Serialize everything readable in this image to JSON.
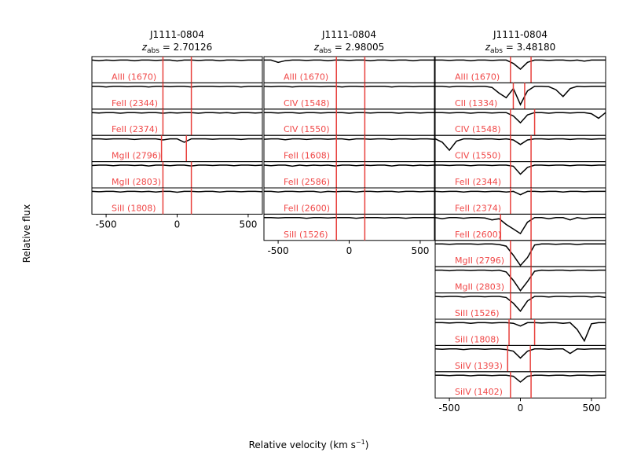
{
  "ylabel": "Relative flux",
  "xlabel_parts": [
    "Relative velocity (km s",
    "−1",
    ")"
  ],
  "chart_data": [
    {
      "type": "line",
      "title": "J1111-0804",
      "subtitle_parts": [
        "z",
        "abs",
        " = 2.70126"
      ],
      "x": [
        -600,
        -550,
        -500,
        -450,
        -400,
        -350,
        -300,
        -250,
        -200,
        -150,
        -100,
        -50,
        0,
        50,
        100,
        150,
        200,
        250,
        300,
        350,
        400,
        450,
        500,
        550,
        600
      ],
      "xlim": [
        -600,
        600
      ],
      "xticks": [
        -500,
        0,
        500
      ],
      "ylim": [
        0,
        1.15
      ],
      "label_color": "#f04848",
      "vline_color": "#e8403c",
      "series": [
        {
          "name": "AlII (1670)",
          "color": "#000000",
          "vlines": [
            -100,
            100
          ],
          "values": [
            1,
            0.97,
            1,
            0.98,
            1,
            1,
            0.97,
            1,
            1,
            0.98,
            1,
            1,
            0.96,
            1,
            1,
            0.98,
            1,
            1,
            0.97,
            1,
            1,
            0.98,
            1,
            1,
            1
          ]
        },
        {
          "name": "FeII (2344)",
          "color": "#000000",
          "vlines": [
            -100,
            100
          ],
          "values": [
            1,
            1,
            0.97,
            1,
            1,
            0.98,
            1,
            1,
            0.97,
            1,
            1,
            0.98,
            1,
            1,
            0.97,
            1,
            1,
            1,
            0.98,
            1,
            1,
            0.97,
            1,
            1,
            1
          ]
        },
        {
          "name": "FeII (2374)",
          "color": "#000000",
          "vlines": [
            -100,
            100
          ],
          "values": [
            1,
            0.98,
            1,
            1,
            0.97,
            1,
            1,
            0.98,
            1,
            1,
            0.97,
            1,
            0.98,
            1,
            1,
            0.97,
            1,
            1,
            0.98,
            1,
            0.97,
            1,
            1,
            0.98,
            1
          ]
        },
        {
          "name": "MgII (2796)",
          "color": "#000000",
          "vlines": [
            -110,
            65
          ],
          "values": [
            1,
            1,
            0.98,
            1,
            1,
            1,
            0.97,
            1,
            1,
            1,
            0.95,
            1,
            1,
            0.85,
            1,
            1,
            1,
            0.98,
            1,
            1,
            1,
            0.97,
            1,
            1,
            1
          ]
        },
        {
          "name": "MgII (2803)",
          "color": "#000000",
          "vlines": [
            -100,
            100
          ],
          "values": [
            0.98,
            1,
            1,
            0.97,
            1,
            1,
            0.98,
            1,
            0.96,
            1,
            1,
            0.97,
            1,
            1,
            0.96,
            1,
            1,
            0.98,
            1,
            1,
            0.97,
            1,
            1,
            0.98,
            1
          ]
        },
        {
          "name": "SiII (1808)",
          "color": "#000000",
          "vlines": [
            -100,
            100
          ],
          "values": [
            1,
            0.98,
            1,
            1,
            0.97,
            1,
            1,
            0.98,
            1,
            0.97,
            1,
            1,
            0.96,
            1,
            1,
            0.98,
            1,
            1,
            0.97,
            1,
            1,
            0.98,
            1,
            1,
            0.98
          ]
        }
      ]
    },
    {
      "type": "line",
      "title": "J1111-0804",
      "subtitle_parts": [
        "z",
        "abs",
        " = 2.98005"
      ],
      "x": [
        -600,
        -550,
        -500,
        -450,
        -400,
        -350,
        -300,
        -250,
        -200,
        -150,
        -100,
        -50,
        0,
        50,
        100,
        150,
        200,
        250,
        300,
        350,
        400,
        450,
        500,
        550,
        600
      ],
      "xlim": [
        -600,
        600
      ],
      "xticks": [
        -500,
        0,
        500
      ],
      "ylim": [
        0,
        1.15
      ],
      "label_color": "#f04848",
      "vline_color": "#e8403c",
      "series": [
        {
          "name": "AlII (1670)",
          "color": "#000000",
          "vlines": [
            -90,
            110
          ],
          "values": [
            1,
            1,
            0.9,
            0.97,
            1,
            1,
            0.98,
            1,
            1,
            0.97,
            1,
            1,
            0.98,
            1,
            1,
            0.97,
            1,
            1,
            0.98,
            1,
            1,
            0.97,
            1,
            1,
            1
          ]
        },
        {
          "name": "CIV (1548)",
          "color": "#000000",
          "vlines": [
            -90,
            110
          ],
          "values": [
            1,
            0.98,
            1,
            1,
            0.97,
            1,
            1,
            1,
            0.98,
            1,
            1,
            0.97,
            1,
            1,
            0.98,
            1,
            1,
            1,
            0.97,
            1,
            1,
            0.98,
            1,
            1,
            1
          ]
        },
        {
          "name": "CIV (1550)",
          "color": "#000000",
          "vlines": [
            -90,
            110
          ],
          "values": [
            1,
            1,
            0.98,
            1,
            1,
            0.97,
            1,
            1,
            0.98,
            1,
            1,
            1,
            0.97,
            1,
            1,
            0.98,
            1,
            1,
            1,
            0.97,
            1,
            1,
            0.98,
            1,
            1
          ]
        },
        {
          "name": "FeII (1608)",
          "color": "#000000",
          "vlines": [
            -90,
            110
          ],
          "values": [
            0.98,
            1,
            1,
            0.96,
            1,
            1,
            0.97,
            1,
            1,
            0.98,
            1,
            1,
            0.96,
            1,
            1,
            0.98,
            1,
            1,
            0.97,
            1,
            1,
            0.98,
            1,
            1,
            0.98
          ]
        },
        {
          "name": "FeII (2586)",
          "color": "#000000",
          "vlines": [
            -90,
            110
          ],
          "values": [
            1,
            0.97,
            1,
            1,
            0.95,
            1,
            0.97,
            1,
            0.98,
            1,
            0.96,
            1,
            1,
            0.97,
            1,
            0.98,
            1,
            1,
            0.96,
            1,
            1,
            0.97,
            1,
            0.98,
            1
          ]
        },
        {
          "name": "FeII (2600)",
          "color": "#000000",
          "vlines": [
            -90,
            110
          ],
          "values": [
            1,
            1,
            0.97,
            1,
            1,
            0.98,
            1,
            1,
            0.96,
            1,
            0.98,
            1,
            1,
            0.97,
            1,
            1,
            0.98,
            1,
            1,
            0.97,
            1,
            1,
            0.98,
            1,
            1
          ]
        },
        {
          "name": "SiII (1526)",
          "color": "#000000",
          "vlines": [
            -90,
            110
          ],
          "values": [
            1,
            1,
            0.98,
            1,
            1,
            1,
            0.97,
            1,
            1,
            0.98,
            1,
            1,
            1,
            0.97,
            1,
            1,
            1,
            0.98,
            1,
            1,
            0.97,
            1,
            1,
            1,
            1
          ]
        }
      ]
    },
    {
      "type": "line",
      "title": "J1111-0804",
      "subtitle_parts": [
        "z",
        "abs",
        " = 3.48180"
      ],
      "x": [
        -600,
        -550,
        -500,
        -450,
        -400,
        -350,
        -300,
        -250,
        -200,
        -150,
        -100,
        -50,
        0,
        50,
        100,
        150,
        200,
        250,
        300,
        350,
        400,
        450,
        500,
        550,
        600
      ],
      "xlim": [
        -600,
        600
      ],
      "xticks": [
        -500,
        0,
        500
      ],
      "ylim": [
        0,
        1.15
      ],
      "label_color": "#f04848",
      "vline_color": "#e8403c",
      "series": [
        {
          "name": "AlII (1670)",
          "color": "#000000",
          "vlines": [
            -70,
            75
          ],
          "values": [
            1,
            1,
            0.98,
            1,
            1,
            0.97,
            1,
            1,
            0.98,
            1,
            1,
            0.85,
            0.6,
            0.9,
            1,
            1,
            0.98,
            1,
            1,
            0.97,
            1,
            0.95,
            1,
            1,
            1
          ]
        },
        {
          "name": "CII (1334)",
          "color": "#000000",
          "vlines": [
            -50,
            30
          ],
          "values": [
            1,
            1,
            0.97,
            1,
            1,
            0.98,
            1,
            1,
            0.95,
            0.7,
            0.5,
            0.9,
            0.2,
            0.8,
            1,
            1,
            0.98,
            0.85,
            0.55,
            0.9,
            1,
            0.98,
            1,
            1,
            1
          ]
        },
        {
          "name": "CIV (1548)",
          "color": "#000000",
          "vlines": [
            -70,
            100
          ],
          "values": [
            1,
            1,
            0.98,
            1,
            1,
            0.97,
            1,
            1,
            0.98,
            1,
            1,
            0.85,
            0.55,
            0.9,
            1,
            1,
            0.97,
            1,
            1,
            0.98,
            1,
            1,
            0.95,
            0.75,
            1
          ]
        },
        {
          "name": "CIV (1550)",
          "color": "#000000",
          "vlines": [
            -70,
            75
          ],
          "values": [
            1,
            0.85,
            0.5,
            0.9,
            1,
            1,
            0.98,
            1,
            1,
            0.97,
            1,
            0.95,
            0.75,
            0.95,
            1,
            1,
            0.98,
            1,
            1,
            0.97,
            1,
            1,
            0.98,
            1,
            1
          ]
        },
        {
          "name": "FeII (2344)",
          "color": "#000000",
          "vlines": [
            -70,
            75
          ],
          "values": [
            1,
            1,
            0.98,
            1,
            1,
            0.97,
            1,
            1,
            0.98,
            1,
            1,
            0.95,
            0.6,
            0.9,
            1,
            1,
            0.98,
            1,
            1,
            0.97,
            1,
            1,
            0.98,
            1,
            1
          ]
        },
        {
          "name": "FeII (2374)",
          "color": "#000000",
          "vlines": [
            -70,
            75
          ],
          "values": [
            1,
            0.98,
            1,
            1,
            0.97,
            1,
            1,
            0.98,
            1,
            1,
            0.97,
            1,
            0.85,
            1,
            1,
            0.98,
            1,
            1,
            0.97,
            1,
            1,
            0.98,
            1,
            1,
            1
          ]
        },
        {
          "name": "FeII (2600)",
          "color": "#000000",
          "vlines": [
            -140,
            75
          ],
          "values": [
            1,
            0.95,
            1,
            1,
            0.97,
            1,
            1,
            0.98,
            0.9,
            0.95,
            0.7,
            0.5,
            0.3,
            0.8,
            1,
            1,
            0.95,
            1,
            1,
            0.9,
            1,
            0.95,
            1,
            1,
            1
          ]
        },
        {
          "name": "MgII (2796)",
          "color": "#000000",
          "vlines": [
            -70,
            75
          ],
          "values": [
            1,
            1,
            0.98,
            1,
            1,
            1,
            0.98,
            1,
            1,
            0.97,
            0.9,
            0.5,
            0.05,
            0.4,
            0.95,
            1,
            1,
            0.98,
            1,
            1,
            0.97,
            1,
            1,
            1,
            1
          ]
        },
        {
          "name": "MgII (2803)",
          "color": "#000000",
          "vlines": [
            -70,
            75
          ],
          "values": [
            1,
            1,
            0.97,
            1,
            1,
            0.98,
            1,
            1,
            0.97,
            1,
            0.92,
            0.55,
            0.1,
            0.5,
            0.95,
            1,
            0.98,
            1,
            1,
            0.97,
            1,
            1,
            0.98,
            1,
            1
          ]
        },
        {
          "name": "SiII (1526)",
          "color": "#000000",
          "vlines": [
            -70,
            75
          ],
          "values": [
            1,
            0.98,
            1,
            1,
            0.97,
            1,
            1,
            0.98,
            1,
            1,
            0.95,
            0.7,
            0.35,
            0.8,
            1,
            1,
            0.97,
            1,
            1,
            0.98,
            1,
            1,
            0.97,
            1,
            0.95
          ]
        },
        {
          "name": "SiII (1808)",
          "color": "#000000",
          "vlines": [
            -80,
            100
          ],
          "values": [
            1,
            1,
            0.98,
            1,
            1,
            0.97,
            1,
            1,
            0.98,
            1,
            1,
            0.97,
            0.85,
            1,
            1,
            0.98,
            1,
            1,
            0.97,
            1,
            0.7,
            0.2,
            0.95,
            1,
            1
          ]
        },
        {
          "name": "SiIV (1393)",
          "color": "#000000",
          "vlines": [
            -90,
            70
          ],
          "values": [
            1,
            0.98,
            1,
            1,
            0.97,
            1,
            1,
            0.98,
            1,
            1,
            0.97,
            0.9,
            0.6,
            0.9,
            1,
            1,
            0.98,
            1,
            1,
            0.8,
            1,
            0.98,
            1,
            1,
            1
          ]
        },
        {
          "name": "SiIV (1402)",
          "color": "#000000",
          "vlines": [
            -70,
            75
          ],
          "values": [
            1,
            1,
            0.98,
            1,
            1,
            0.97,
            1,
            1,
            0.98,
            1,
            1,
            0.95,
            0.7,
            0.95,
            1,
            1,
            0.98,
            1,
            1,
            0.97,
            1,
            1,
            0.98,
            1,
            1
          ]
        }
      ]
    }
  ]
}
